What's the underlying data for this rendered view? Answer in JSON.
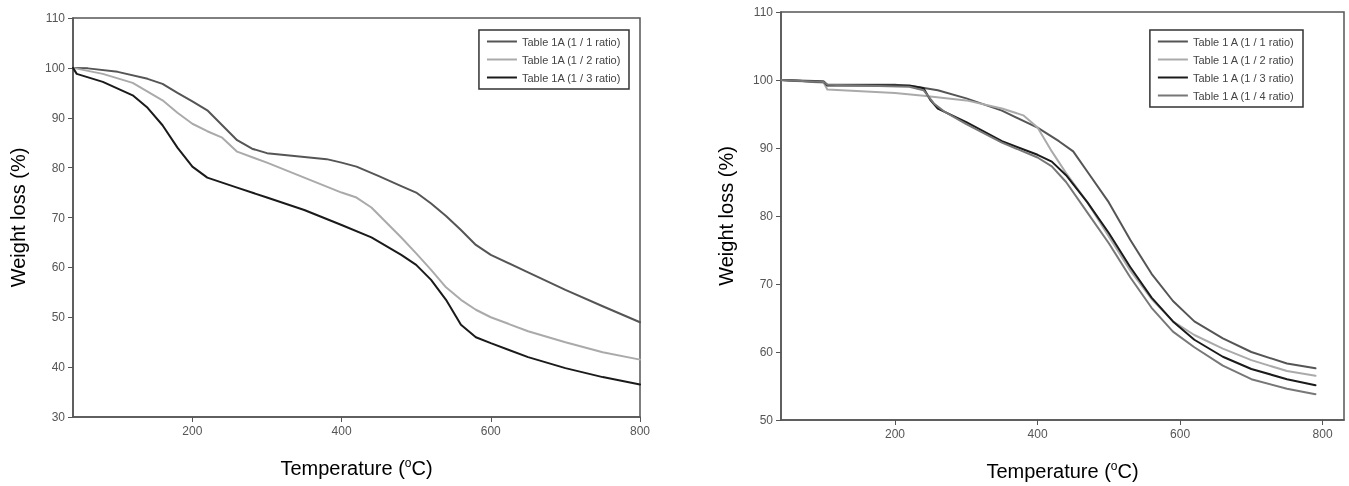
{
  "chart_data": [
    {
      "type": "line",
      "xlabel": "Temperature ($^{o}$C)",
      "ylabel": "Weight loss (%)",
      "xlim": [
        40,
        800
      ],
      "xticks": [
        200,
        400,
        600,
        800
      ],
      "ylim": [
        30,
        110
      ],
      "yticks": [
        30,
        40,
        50,
        60,
        70,
        80,
        90,
        100,
        110
      ],
      "grid": false,
      "legend": "top right",
      "marker": "none",
      "line_style": "solid",
      "series": [
        {
          "name": "Table 1A (1 / 1 ratio)",
          "color": "#555555",
          "x": [
            40,
            60,
            100,
            140,
            160,
            180,
            200,
            220,
            240,
            260,
            280,
            300,
            340,
            380,
            400,
            420,
            450,
            480,
            500,
            520,
            540,
            560,
            580,
            600,
            650,
            700,
            750,
            800
          ],
          "values": [
            100,
            99.9,
            99.2,
            97.8,
            96.8,
            95,
            93.3,
            91.5,
            88.5,
            85.5,
            83.8,
            82.9,
            82.3,
            81.7,
            81,
            80.2,
            78.3,
            76.3,
            75,
            72.8,
            70.3,
            67.5,
            64.5,
            62.5,
            59,
            55.5,
            52.2,
            49
          ]
        },
        {
          "name": "Table 1A (1 / 2 ratio)",
          "color": "#aaaaaa",
          "x": [
            40,
            80,
            120,
            160,
            180,
            200,
            220,
            240,
            260,
            300,
            350,
            400,
            420,
            440,
            460,
            480,
            500,
            520,
            540,
            560,
            580,
            600,
            650,
            700,
            750,
            800
          ],
          "values": [
            100,
            98.8,
            97,
            93.5,
            91,
            88.8,
            87.3,
            86,
            83.2,
            81,
            78,
            75,
            74,
            72,
            69,
            66,
            62.8,
            59.5,
            56,
            53.5,
            51.5,
            50,
            47.2,
            45,
            43,
            41.5
          ]
        },
        {
          "name": "Table 1A (1 / 3 ratio)",
          "color": "#1a1a1a",
          "x": [
            40,
            45,
            80,
            120,
            140,
            160,
            180,
            200,
            220,
            260,
            300,
            350,
            400,
            440,
            480,
            500,
            520,
            540,
            560,
            580,
            600,
            650,
            700,
            750,
            800
          ],
          "values": [
            100,
            98.8,
            97.2,
            94.5,
            92,
            88.5,
            84,
            80.2,
            78,
            76,
            74,
            71.5,
            68.5,
            66,
            62.5,
            60.5,
            57.5,
            53.5,
            48.5,
            46,
            44.8,
            42,
            39.8,
            38,
            36.5
          ]
        }
      ]
    },
    {
      "type": "line",
      "xlabel": "Temperature ($^{o}$C)",
      "ylabel": "Weight loss (%)",
      "xlim": [
        40,
        830
      ],
      "xticks": [
        200,
        400,
        600,
        800
      ],
      "ylim": [
        50,
        110
      ],
      "yticks": [
        50,
        60,
        70,
        80,
        90,
        100,
        110
      ],
      "grid": false,
      "legend": "top right",
      "marker": "none",
      "line_style": "solid",
      "series": [
        {
          "name": "Table 1 A (1 / 1 ratio)",
          "color": "#555555",
          "x": [
            40,
            100,
            105,
            200,
            230,
            260,
            300,
            350,
            400,
            430,
            450,
            470,
            500,
            530,
            560,
            590,
            620,
            660,
            700,
            750,
            790
          ],
          "values": [
            100,
            99.8,
            99.3,
            99.3,
            99,
            98.5,
            97.3,
            95.5,
            93,
            91,
            89.5,
            86.5,
            82,
            76.5,
            71.5,
            67.5,
            64.5,
            62,
            60,
            58.3,
            57.6
          ]
        },
        {
          "name": "Table 1 A (1 / 2 ratio)",
          "color": "#aaaaaa",
          "x": [
            40,
            100,
            105,
            200,
            240,
            300,
            350,
            380,
            400,
            420,
            440,
            470,
            500,
            530,
            560,
            590,
            620,
            660,
            700,
            750,
            790
          ],
          "values": [
            100,
            99.6,
            98.6,
            98.1,
            97.7,
            97,
            95.8,
            94.8,
            93,
            89.5,
            86.3,
            82,
            77,
            72,
            67.8,
            64.5,
            62.5,
            60.5,
            58.8,
            57.2,
            56.5
          ]
        },
        {
          "name": "Table 1 A (1 / 3 ratio)",
          "color": "#1a1a1a",
          "x": [
            40,
            100,
            105,
            220,
            240,
            250,
            260,
            300,
            350,
            400,
            420,
            440,
            470,
            500,
            530,
            560,
            590,
            620,
            660,
            700,
            750,
            790
          ],
          "values": [
            100,
            99.7,
            99.2,
            99.2,
            98.8,
            97,
            95.8,
            93.8,
            91,
            89,
            88,
            86,
            82,
            77.5,
            72.5,
            68,
            64.5,
            61.8,
            59.3,
            57.5,
            56,
            55.1
          ]
        },
        {
          "name": "Table 1 A (1 / 4 ratio)",
          "color": "#777777",
          "x": [
            40,
            100,
            105,
            220,
            240,
            255,
            270,
            300,
            350,
            400,
            420,
            440,
            470,
            500,
            530,
            560,
            590,
            620,
            660,
            700,
            750,
            790
          ],
          "values": [
            100,
            99.7,
            99.3,
            99,
            98.5,
            96.5,
            95.3,
            93.5,
            90.8,
            88.6,
            87.3,
            85,
            80.5,
            76,
            71,
            66.5,
            63,
            60.7,
            58,
            56,
            54.6,
            53.8
          ]
        }
      ]
    }
  ]
}
